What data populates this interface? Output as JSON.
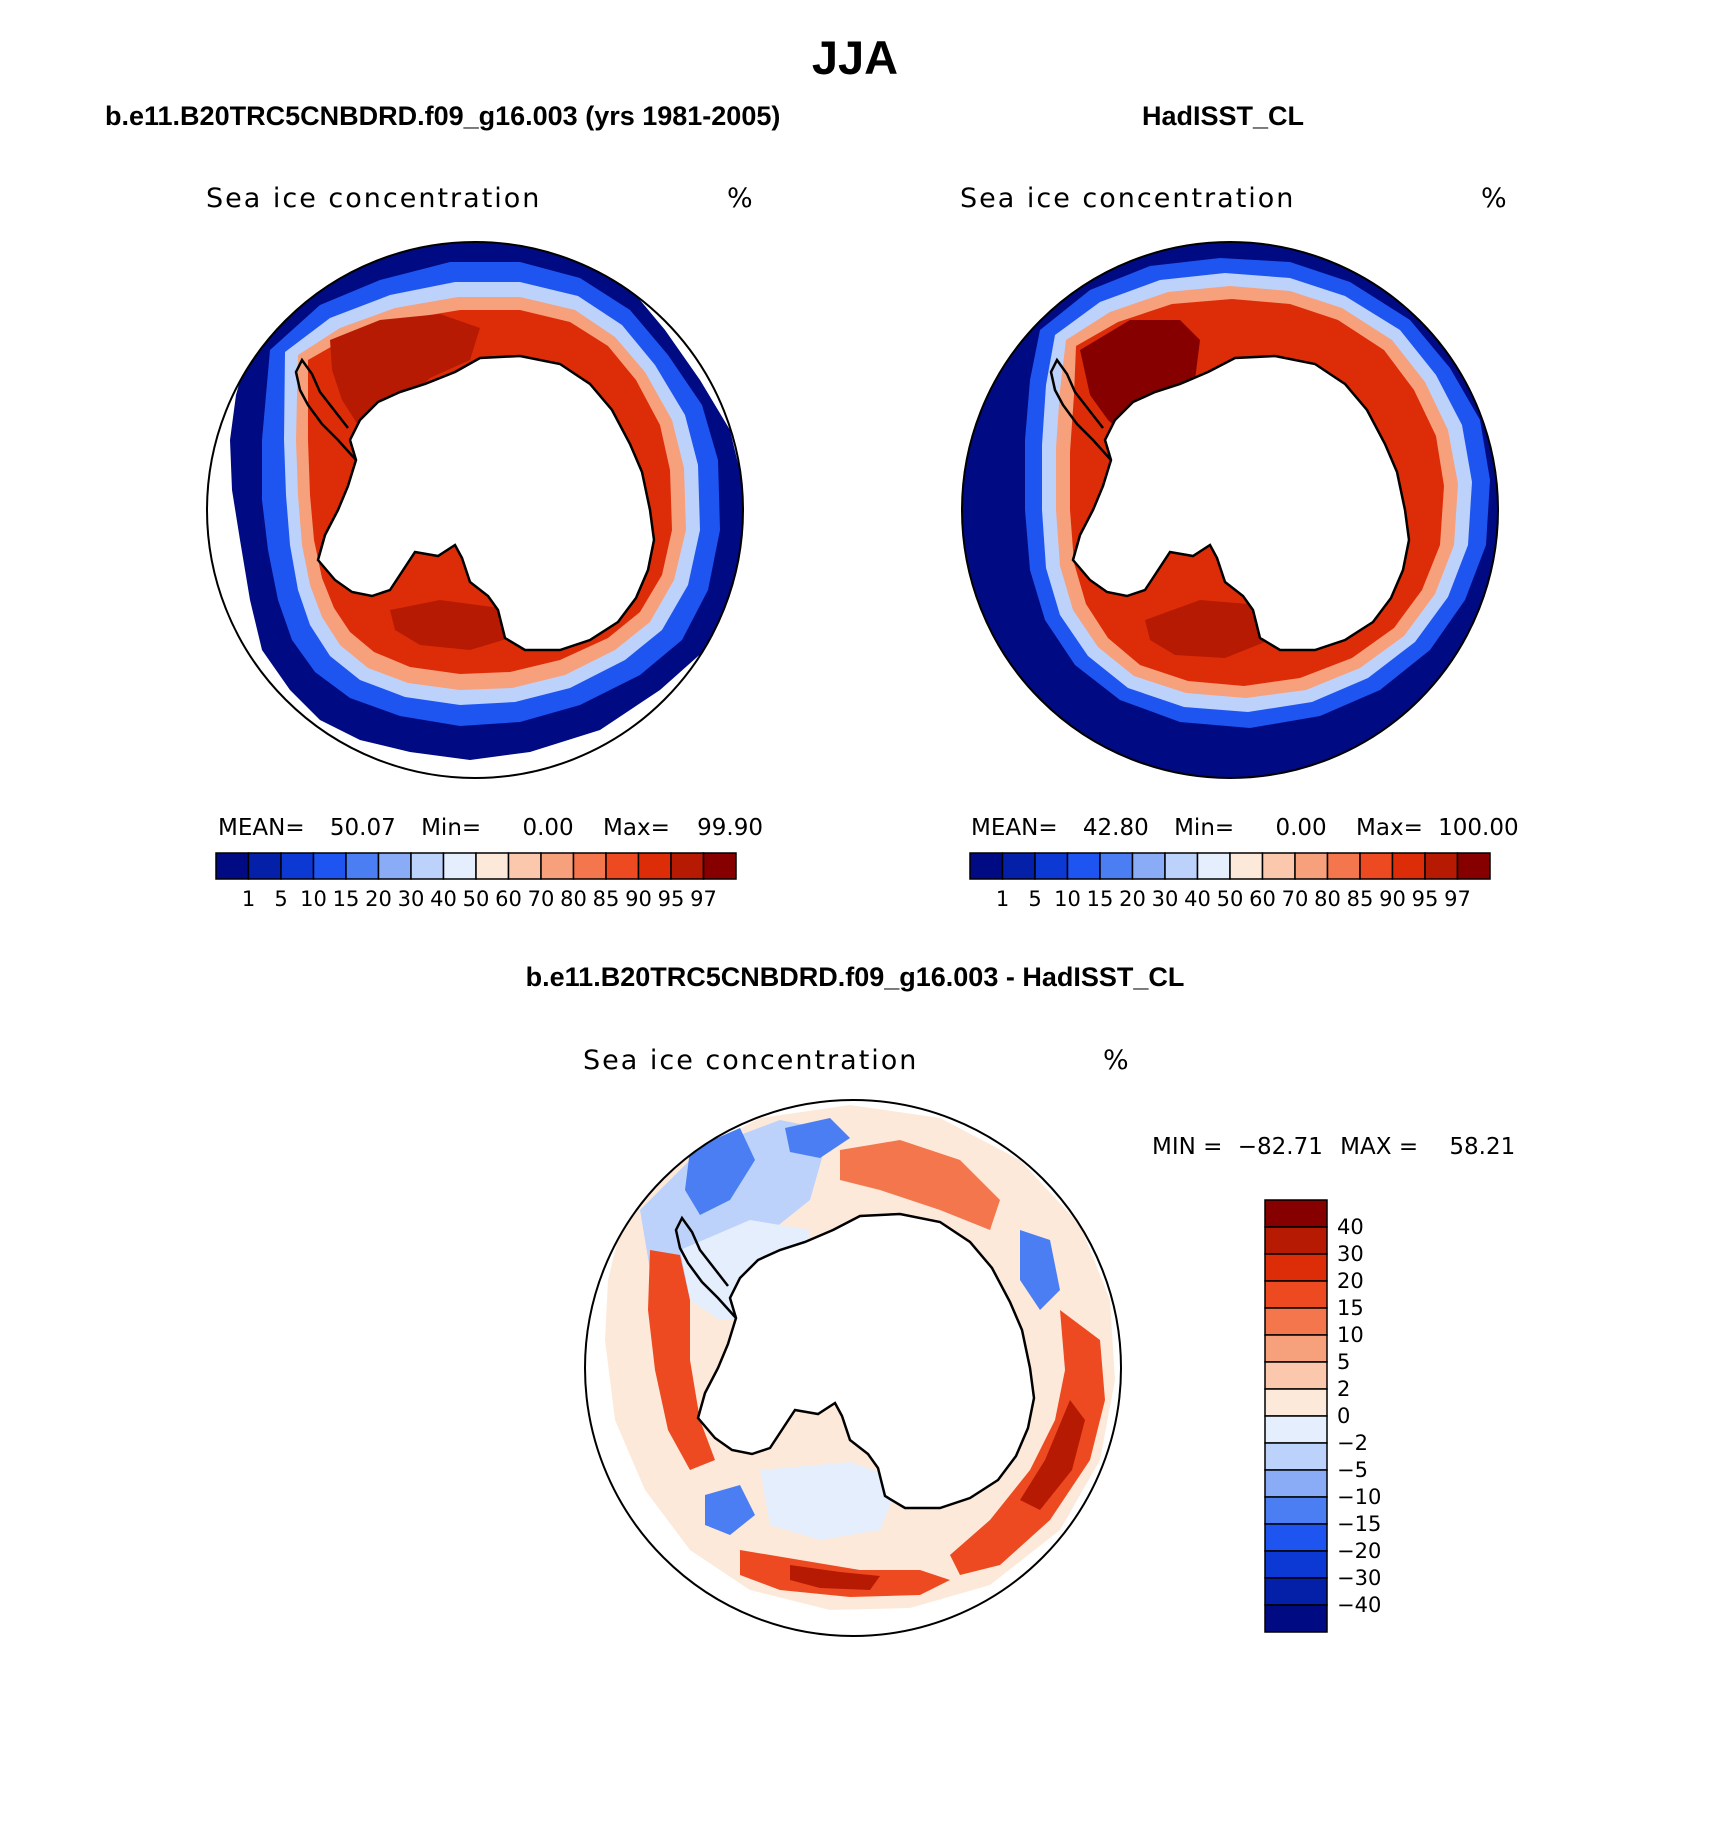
{
  "main_title": "JJA",
  "panels": [
    {
      "id": "model",
      "title": "b.e11.B20TRC5CNBDRD.f09_g16.003 (yrs 1981-2005)",
      "variable_label": "Sea ice concentration",
      "units_label": "%",
      "stats": {
        "mean_label": "MEAN=",
        "mean_value": "50.07",
        "min_label": "Min=",
        "min_value": "0.00",
        "max_label": "Max=",
        "max_value": "99.90"
      }
    },
    {
      "id": "obs",
      "title": "HadISST_CL",
      "variable_label": "Sea ice concentration",
      "units_label": "%",
      "stats": {
        "mean_label": "MEAN=",
        "mean_value": "42.80",
        "min_label": "Min=",
        "min_value": "0.00",
        "max_label": "Max=",
        "max_value": "100.00"
      }
    },
    {
      "id": "diff",
      "title": "b.e11.B20TRC5CNBDRD.f09_g16.003 - HadISST_CL",
      "variable_label": "Sea ice concentration",
      "units_label": "%",
      "stats": {
        "min_label": "MIN =",
        "min_value": "−82.71",
        "max_label": "MAX =",
        "max_value": "58.21"
      }
    }
  ],
  "colorbars": {
    "concentration": {
      "colors": [
        "#000a82",
        "#0520a8",
        "#0c38d4",
        "#1e55f0",
        "#4a7ef2",
        "#8aacf7",
        "#bcd2fb",
        "#e4eefd",
        "#fde9d9",
        "#fbc7ad",
        "#f7a07c",
        "#f4764c",
        "#ee4a21",
        "#dd2d08",
        "#b71a03",
        "#860000"
      ],
      "tick_labels": [
        "1",
        "5",
        "10",
        "15",
        "20",
        "30",
        "40",
        "50",
        "60",
        "70",
        "80",
        "85",
        "90",
        "95",
        "97"
      ]
    },
    "difference": {
      "colors": [
        "#860000",
        "#b71a03",
        "#dd2d08",
        "#ee4a21",
        "#f4764c",
        "#f7a07c",
        "#fbc7ad",
        "#fde9d9",
        "#e4eefd",
        "#bcd2fb",
        "#8aacf7",
        "#4a7ef2",
        "#1e55f0",
        "#0c38d4",
        "#0520a8",
        "#000a82"
      ],
      "tick_labels": [
        "40",
        "30",
        "20",
        "15",
        "10",
        "5",
        "2",
        "0",
        "−2",
        "−5",
        "−10",
        "−15",
        "−20",
        "−30",
        "−40"
      ]
    }
  }
}
